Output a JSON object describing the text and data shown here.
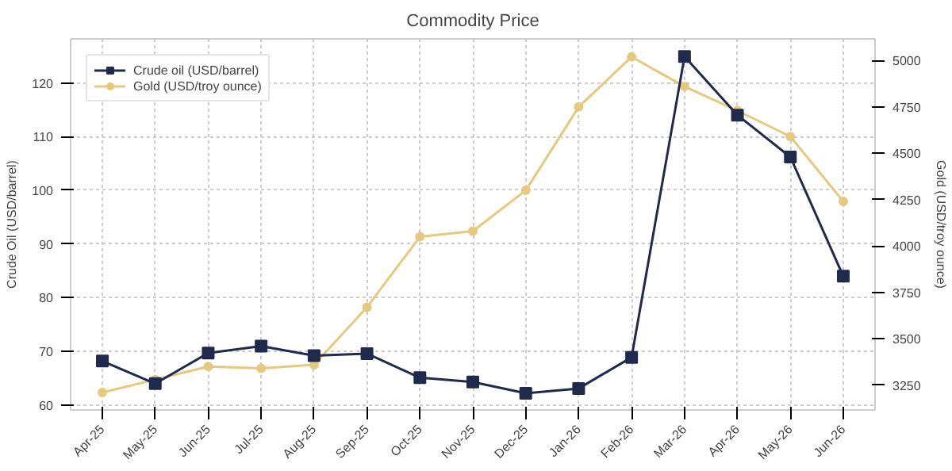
{
  "chart_data": {
    "type": "line",
    "title": "Commodity Price",
    "ylabel": "Crude Oil (USD/barrel)",
    "y2label": "Gold (USD/troy ounce)",
    "categories": [
      "Apr-25",
      "May-25",
      "Jun-25",
      "Jul-25",
      "Aug-25",
      "Sep-25",
      "Oct-25",
      "Nov-25",
      "Dec-25",
      "Jan-26",
      "Feb-26",
      "Mar-26",
      "Apr-26",
      "May-26",
      "Jun-26"
    ],
    "series": [
      {
        "name": "Crude oil (USD/barrel)",
        "color": "#1f2a4d",
        "marker": "square",
        "values": [
          68.2,
          64,
          69.7,
          71,
          69.2,
          69.6,
          65.1,
          64.3,
          62.2,
          63.1,
          68.9,
          124.9,
          114,
          106.2,
          84
        ]
      },
      {
        "name": "Gold (USD/troy ounce)",
        "color": "#e6c87f",
        "marker": "circle",
        "axis": "y2",
        "values": [
          3210,
          3280,
          3350,
          3340,
          3360,
          3670,
          4050,
          4080,
          4300,
          4750,
          5020,
          4860,
          4730,
          4590,
          4240
        ]
      }
    ],
    "ylim": [
      59.1,
      128.2
    ],
    "yticks": [
      60,
      70,
      80,
      90,
      100,
      110,
      120
    ],
    "y2lim": [
      3116,
      5117
    ],
    "y2ticks": [
      3250,
      3500,
      3750,
      4000,
      4250,
      4500,
      4750,
      5000
    ],
    "grid": true,
    "legend": "top left",
    "line_style": "solid"
  }
}
